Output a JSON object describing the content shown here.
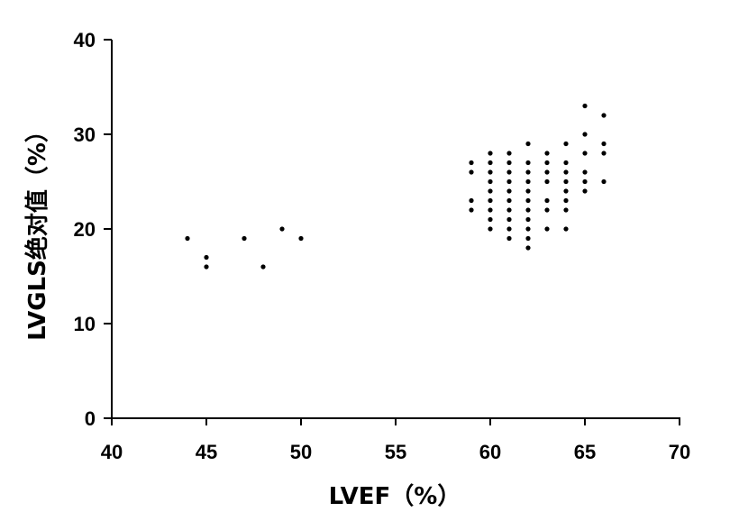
{
  "chart_data": {
    "type": "scatter",
    "title": "",
    "xlabel": "LVEF（%）",
    "ylabel": "LVGLS绝对值（%）",
    "xlim": [
      40,
      70
    ],
    "ylim": [
      0,
      40
    ],
    "x_ticks": [
      40,
      45,
      50,
      55,
      60,
      65,
      70
    ],
    "y_ticks": [
      0,
      10,
      20,
      30,
      40
    ],
    "grid": false,
    "legend": "none",
    "point_color": "#000000",
    "series": [
      {
        "points": [
          [
            44,
            19
          ],
          [
            45,
            17
          ],
          [
            45,
            16
          ],
          [
            47,
            19
          ],
          [
            48,
            16
          ],
          [
            49,
            20
          ],
          [
            50,
            19
          ],
          [
            59,
            27
          ],
          [
            59,
            26
          ],
          [
            59,
            23
          ],
          [
            59,
            22
          ],
          [
            60,
            28
          ],
          [
            60,
            27
          ],
          [
            60,
            26
          ],
          [
            60,
            25
          ],
          [
            60,
            24
          ],
          [
            60,
            23
          ],
          [
            60,
            22
          ],
          [
            60,
            21
          ],
          [
            60,
            20
          ],
          [
            61,
            28
          ],
          [
            61,
            27
          ],
          [
            61,
            26
          ],
          [
            61,
            25
          ],
          [
            61,
            24
          ],
          [
            61,
            23
          ],
          [
            61,
            22
          ],
          [
            61,
            21
          ],
          [
            61,
            20
          ],
          [
            61,
            19
          ],
          [
            62,
            29
          ],
          [
            62,
            27
          ],
          [
            62,
            26
          ],
          [
            62,
            25
          ],
          [
            62,
            24
          ],
          [
            62,
            23
          ],
          [
            62,
            22
          ],
          [
            62,
            21
          ],
          [
            62,
            20
          ],
          [
            62,
            19
          ],
          [
            62,
            18
          ],
          [
            63,
            28
          ],
          [
            63,
            27
          ],
          [
            63,
            26
          ],
          [
            63,
            25
          ],
          [
            63,
            23
          ],
          [
            63,
            22
          ],
          [
            63,
            20
          ],
          [
            64,
            29
          ],
          [
            64,
            27
          ],
          [
            64,
            26
          ],
          [
            64,
            25
          ],
          [
            64,
            24
          ],
          [
            64,
            23
          ],
          [
            64,
            22
          ],
          [
            64,
            20
          ],
          [
            65,
            33
          ],
          [
            65,
            30
          ],
          [
            65,
            28
          ],
          [
            65,
            26
          ],
          [
            65,
            25
          ],
          [
            65,
            24
          ],
          [
            66,
            32
          ],
          [
            66,
            29
          ],
          [
            66,
            28
          ],
          [
            66,
            25
          ]
        ]
      }
    ]
  }
}
